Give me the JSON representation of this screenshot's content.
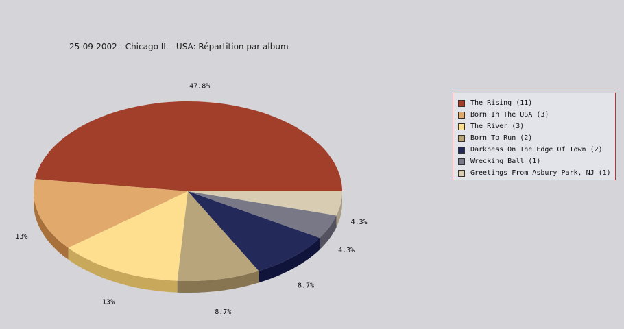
{
  "chart_data": {
    "type": "pie",
    "title": "25-09-2002 - Chicago IL - USA:  Répartition par album",
    "legend_position": "right",
    "slices": [
      {
        "label": "The Rising (11)",
        "value": 11,
        "percent_label": "47.8%",
        "color": "#a23f2a",
        "side_color": "#6e0f07"
      },
      {
        "label": "Born In The USA (3)",
        "value": 3,
        "percent_label": "13%",
        "color": "#e1aa6c",
        "side_color": "#a8703a"
      },
      {
        "label": "The River (3)",
        "value": 3,
        "percent_label": "13%",
        "color": "#fedf8f",
        "side_color": "#c8a85a"
      },
      {
        "label": "Born To Run (2)",
        "value": 2,
        "percent_label": "8.7%",
        "color": "#b8a57b",
        "side_color": "#867550"
      },
      {
        "label": "Darkness On The Edge Of Town (2)",
        "value": 2,
        "percent_label": "8.7%",
        "color": "#232958",
        "side_color": "#11143a"
      },
      {
        "label": "Wrecking Ball (1)",
        "value": 1,
        "percent_label": "4.3%",
        "color": "#797886",
        "side_color": "#53525e"
      },
      {
        "label": "Greetings From Asbury Park, NJ (1)",
        "value": 1,
        "percent_label": "4.3%",
        "color": "#d8cdb3",
        "side_color": "#a89e86"
      }
    ]
  }
}
